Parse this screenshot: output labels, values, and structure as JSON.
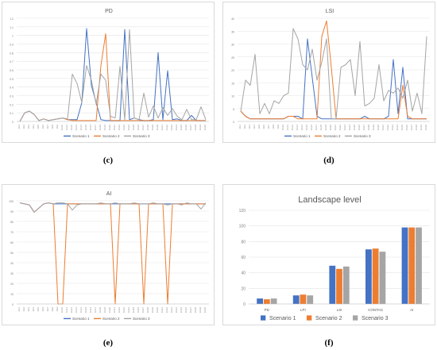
{
  "panels": [
    {
      "caption": "(c)"
    },
    {
      "caption": "(d)"
    },
    {
      "caption": "(e)"
    },
    {
      "caption": "(f)"
    }
  ],
  "chart_data": [
    {
      "type": "line",
      "title": "PD",
      "ylim": [
        0,
        1.2
      ],
      "yticks": [
        "0",
        "0.1",
        "0.2",
        "0.3",
        "0.4",
        "0.5",
        "0.6",
        "0.7",
        "0.8",
        "0.9",
        "1",
        "1.1",
        "1.2"
      ],
      "x": [
        "1G1",
        "1G2",
        "1G3",
        "1G4",
        "1G5",
        "1G6",
        "1G7",
        "1G8",
        "1G9",
        "1G10",
        "1G11",
        "1G12",
        "1G13",
        "1G14",
        "1G15",
        "1G16",
        "1G17",
        "1G18",
        "1G19",
        "1G20",
        "1G21",
        "1G22",
        "1G23",
        "1G24",
        "1G25",
        "1G26",
        "1G27",
        "1G28",
        "1G29",
        "1G30",
        "1G31",
        "1G32",
        "1G33",
        "1G34",
        "1G35",
        "1G36",
        "1G37",
        "1G38",
        "1G39",
        "1G40"
      ],
      "series": [
        {
          "name": "Scenario 1",
          "color": "#4472c4",
          "values": [
            0,
            0.1,
            0.12,
            0.08,
            0.01,
            0.03,
            0.01,
            0.02,
            0.03,
            0.04,
            0.02,
            0.02,
            0.02,
            0.22,
            1.08,
            0.42,
            0.22,
            0.02,
            0.01,
            0.01,
            0.01,
            0.01,
            1.07,
            0.02,
            0.04,
            0.02,
            0.01,
            0.01,
            0.02,
            0.8,
            0.02,
            0.59,
            0.02,
            0.03,
            0.01,
            0.01,
            0.07,
            0.01,
            0.01,
            0.01
          ]
        },
        {
          "name": "Scenario 2",
          "color": "#ed7d31",
          "values": [
            0,
            0.1,
            0.12,
            0.08,
            0.01,
            0.03,
            0.01,
            0.02,
            0.03,
            0.04,
            0.02,
            0.01,
            0.01,
            0.01,
            0.01,
            0.01,
            0.01,
            0.65,
            1.02,
            0.01,
            0.01,
            0.01,
            0.01,
            0.01,
            0.01,
            0.01,
            0.01,
            0.01,
            0.01,
            0.01,
            0.01,
            0.01,
            0.01,
            0.01,
            0.01,
            0.01,
            0.01,
            0.01,
            0.01,
            0.01
          ]
        },
        {
          "name": "Scenario 3",
          "color": "#a5a5a5",
          "values": [
            0,
            0.1,
            0.12,
            0.08,
            0.01,
            0.03,
            0.01,
            0.02,
            0.03,
            0.04,
            0.03,
            0.55,
            0.44,
            0.22,
            0.65,
            0.48,
            0.2,
            0.55,
            0.48,
            0.06,
            0.04,
            0.64,
            0.02,
            1.07,
            0.04,
            0.02,
            0.33,
            0.05,
            0.18,
            0.04,
            0.16,
            0.07,
            0.15,
            0.06,
            0.02,
            0.14,
            0.02,
            0.02,
            0.17,
            0.02
          ]
        }
      ],
      "legend": "bottom"
    },
    {
      "type": "line",
      "title": "LSI",
      "ylim": [
        0,
        40
      ],
      "yticks": [
        "0",
        "5",
        "10",
        "15",
        "20",
        "25",
        "30",
        "35",
        "40"
      ],
      "x": [
        "1G1",
        "1G2",
        "1G3",
        "1G4",
        "1G5",
        "1G6",
        "1G7",
        "1G8",
        "1G9",
        "1G10",
        "1G11",
        "1G12",
        "1G13",
        "1G14",
        "1G15",
        "1G16",
        "1G17",
        "1G18",
        "1G19",
        "1G20",
        "1G21",
        "1G22",
        "1G23",
        "1G24",
        "1G25",
        "1G26",
        "1G27",
        "1G28",
        "1G29",
        "1G30",
        "1G31",
        "1G32",
        "1G33",
        "1G34",
        "1G35",
        "1G36",
        "1G37",
        "1G38",
        "1G39",
        "1G40"
      ],
      "series": [
        {
          "name": "Scenario 1",
          "color": "#4472c4",
          "values": [
            4,
            2,
            1,
            1,
            1,
            1,
            1,
            1,
            1,
            1,
            2,
            2,
            2,
            1,
            32,
            17,
            2,
            1,
            1,
            1,
            1,
            1,
            1,
            1,
            1,
            1,
            2,
            1,
            1,
            1,
            1,
            2,
            24,
            3,
            21,
            1,
            1,
            1,
            1,
            1
          ]
        },
        {
          "name": "Scenario 2",
          "color": "#ed7d31",
          "values": [
            4,
            2,
            1,
            1,
            1,
            1,
            1,
            1,
            1,
            1,
            2,
            2,
            1,
            1,
            1,
            1,
            1,
            33,
            39,
            21,
            1,
            1,
            1,
            1,
            1,
            1,
            1,
            1,
            1,
            1,
            1,
            1,
            1,
            1,
            14,
            2,
            1,
            1,
            1,
            1
          ]
        },
        {
          "name": "Scenario 3",
          "color": "#a5a5a5",
          "values": [
            4,
            16,
            14,
            26,
            3,
            7,
            3,
            8,
            7,
            10,
            11,
            36,
            32,
            22,
            20,
            28,
            16,
            23,
            32,
            1,
            1,
            21,
            22,
            24,
            10,
            31,
            6,
            7,
            9,
            22,
            8,
            12,
            11,
            13,
            9,
            16,
            4,
            11,
            3,
            33
          ]
        }
      ],
      "legend": "bottom"
    },
    {
      "type": "line",
      "title": "AI",
      "ylim": [
        0,
        100
      ],
      "yticks": [
        "0",
        "10",
        "20",
        "30",
        "40",
        "50",
        "60",
        "70",
        "80",
        "90",
        "100"
      ],
      "x": [
        "1G1",
        "1G2",
        "1G3",
        "1G4",
        "1G5",
        "1G6",
        "1G7",
        "1G8",
        "1G9",
        "1G10",
        "1G11",
        "1G12",
        "1G13",
        "1G14",
        "1G15",
        "1G16",
        "1G17",
        "1G18",
        "1G19",
        "1G20",
        "1G21",
        "1G22",
        "1G23",
        "1G24",
        "1G25",
        "1G26",
        "1G27",
        "1G28",
        "1G29",
        "1G30",
        "1G31",
        "1G32",
        "1G33",
        "1G34",
        "1G35",
        "1G36",
        "1G37",
        "1G38",
        "1G39",
        "1G40"
      ],
      "series": [
        {
          "name": "Scenario 1",
          "color": "#4472c4",
          "values": [
            98,
            97,
            96,
            89,
            93,
            97,
            98,
            97,
            97,
            97,
            97,
            97,
            97,
            97,
            97,
            97,
            97,
            97,
            97,
            97,
            97,
            97,
            97,
            97,
            97,
            97,
            97,
            97,
            97,
            97,
            97,
            97,
            97,
            97,
            97,
            97,
            97,
            97,
            97,
            97
          ]
        },
        {
          "name": "Scenario 2",
          "color": "#ed7d31",
          "values": [
            98,
            97,
            96,
            89,
            93,
            97,
            98,
            97,
            0,
            0,
            97,
            97,
            97,
            97,
            97,
            97,
            97,
            97,
            97,
            97,
            0,
            97,
            97,
            97,
            97,
            97,
            0,
            97,
            97,
            97,
            97,
            0,
            97,
            97,
            97,
            97,
            97,
            97,
            97,
            97
          ]
        },
        {
          "name": "Scenario 3",
          "color": "#a5a5a5",
          "values": [
            98,
            97,
            96,
            89,
            93,
            97,
            98,
            97,
            98,
            98,
            97,
            91,
            96,
            97,
            97,
            97,
            97,
            98,
            97,
            97,
            98,
            97,
            97,
            97,
            98,
            97,
            97,
            97,
            98,
            97,
            97,
            96,
            97,
            97,
            96,
            98,
            97,
            97,
            92,
            98
          ]
        }
      ],
      "legend": "bottom"
    },
    {
      "type": "bar",
      "title": "Landscape level",
      "ylim": [
        0,
        120
      ],
      "yticks": [
        "0",
        "20",
        "40",
        "60",
        "80",
        "100",
        "120"
      ],
      "categories": [
        "PD",
        "LPI",
        "LSI",
        "CONTAG",
        "AI"
      ],
      "series": [
        {
          "name": "Scenario 1",
          "color": "#4472c4",
          "values": [
            7,
            11,
            49,
            70,
            98
          ]
        },
        {
          "name": "Scenario 2",
          "color": "#ed7d31",
          "values": [
            6,
            12,
            45,
            71,
            98
          ]
        },
        {
          "name": "Scenario 3",
          "color": "#a5a5a5",
          "values": [
            7,
            11,
            48,
            67,
            98
          ]
        }
      ],
      "legend": "bottom"
    }
  ]
}
